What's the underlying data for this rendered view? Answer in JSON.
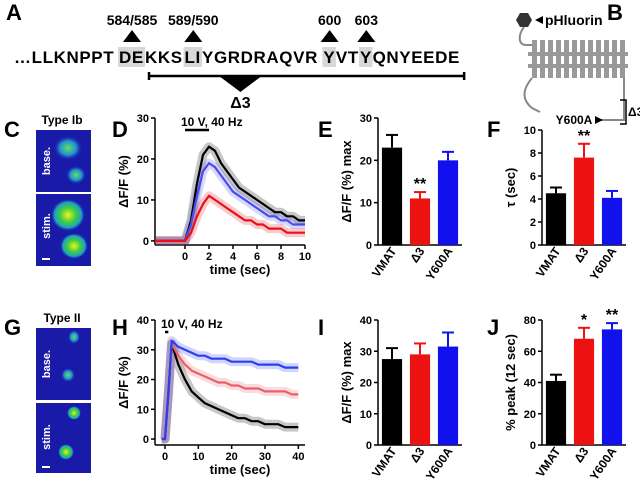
{
  "sequence_panel": {
    "panel": "A",
    "parts": [
      "…LLKNPPT",
      "DE",
      "KKS",
      "LI",
      "YGRDRAQVR",
      "Y",
      "VT",
      "Y",
      "QNYEEDE"
    ],
    "highlight": [
      false,
      true,
      false,
      true,
      false,
      true,
      false,
      true,
      false
    ],
    "site_labels": [
      "584/585",
      "589/590",
      "600",
      "603"
    ],
    "deletion_label": "Δ3"
  },
  "topology_panel": {
    "panel": "B",
    "tag": "pHluorin",
    "mutation": "Y600A",
    "deletion_label": "Δ3"
  },
  "image_panels": [
    {
      "panel": "C",
      "title": "Type Ib",
      "rows": [
        "base.",
        "stim."
      ]
    },
    {
      "panel": "G",
      "title": "Type II",
      "rows": [
        "base.",
        "stim."
      ]
    }
  ],
  "chart_data": [
    {
      "type": "line",
      "panel": "D",
      "title": "10 V, 40 Hz",
      "x_label": "time (sec)",
      "y_label": "ΔF/F (%)",
      "x": [
        -2.5,
        -2,
        -1.5,
        -1,
        -0.5,
        0,
        0.5,
        1,
        1.5,
        2,
        2.5,
        3,
        3.5,
        4,
        4.5,
        5,
        5.5,
        6,
        6.5,
        7,
        7.5,
        8,
        8.5,
        9,
        9.5,
        10
      ],
      "series": [
        {
          "color": "#000000",
          "values": [
            0,
            0,
            0,
            0,
            0,
            0,
            5,
            14,
            21,
            23,
            22,
            19,
            17,
            15,
            13,
            12,
            11,
            10,
            9,
            8,
            7,
            7,
            6,
            6,
            5,
            5
          ]
        },
        {
          "color": "#4a4cf0",
          "values": [
            0,
            0,
            0,
            0,
            0,
            0,
            4,
            11,
            17,
            19,
            18,
            16,
            14,
            12,
            11,
            10,
            9,
            8,
            7,
            6,
            6,
            5,
            5,
            4,
            4,
            4
          ]
        },
        {
          "color": "#e8101a",
          "values": [
            0,
            0,
            0,
            0,
            0,
            0,
            2,
            6,
            9,
            11,
            10,
            9,
            8,
            7,
            6,
            5,
            5,
            4,
            4,
            3,
            3,
            3,
            2,
            2,
            2,
            2
          ]
        }
      ],
      "stimulus": [
        0,
        2
      ],
      "xlim": [
        -2.5,
        10
      ],
      "xticks": [
        0,
        2,
        4,
        6,
        8,
        10
      ],
      "ylim": [
        -1,
        30
      ],
      "yticks": [
        0,
        10,
        20,
        30
      ]
    },
    {
      "type": "bar",
      "panel": "E",
      "y_label": "ΔF/F (%) max",
      "categories": [
        "VMAT",
        "Δ3",
        "Y600A"
      ],
      "colors": [
        "#000000",
        "#ee1111",
        "#1111ee"
      ],
      "values": [
        23,
        11,
        20
      ],
      "errors": [
        3,
        1.5,
        2
      ],
      "significance": [
        null,
        "**",
        null
      ],
      "ylim": [
        0,
        30
      ],
      "yticks": [
        0,
        10,
        20,
        30
      ]
    },
    {
      "type": "bar",
      "panel": "F",
      "y_label": "τ (sec)",
      "categories": [
        "VMAT",
        "Δ3",
        "Y600A"
      ],
      "colors": [
        "#000000",
        "#ee1111",
        "#1111ee"
      ],
      "values": [
        4.5,
        7.6,
        4.1
      ],
      "errors": [
        0.5,
        1.2,
        0.6
      ],
      "significance": [
        null,
        "**",
        null
      ],
      "ylim": [
        0,
        10
      ],
      "yticks": [
        0,
        2,
        4,
        6,
        8,
        10
      ]
    },
    {
      "type": "line",
      "panel": "H",
      "title": "10 V, 40 Hz",
      "x_label": "time (sec)",
      "y_label": "ΔF/F (%)",
      "x": [
        -1,
        0,
        1,
        2,
        4,
        6,
        8,
        10,
        12,
        14,
        16,
        18,
        20,
        22,
        24,
        26,
        28,
        30,
        32,
        34,
        36,
        38,
        40
      ],
      "series": [
        {
          "color": "#000000",
          "values": [
            0,
            0,
            15,
            32,
            25,
            20,
            16,
            14,
            12,
            11,
            10,
            9,
            8,
            7,
            7,
            6,
            6,
            5,
            5,
            5,
            4,
            4,
            4
          ]
        },
        {
          "color": "#e8606a",
          "values": [
            0,
            0,
            15,
            32,
            28,
            25,
            23,
            22,
            21,
            20,
            19,
            19,
            18,
            18,
            17,
            17,
            17,
            16,
            16,
            16,
            16,
            15,
            15
          ]
        },
        {
          "color": "#2a40f0",
          "values": [
            0,
            0,
            15,
            33,
            31,
            30,
            29,
            28,
            28,
            27,
            27,
            27,
            26,
            26,
            26,
            26,
            25,
            25,
            25,
            25,
            24,
            24,
            24
          ]
        }
      ],
      "stimulus": [
        0,
        1
      ],
      "xlim": [
        -3,
        42
      ],
      "xticks": [
        0,
        10,
        20,
        30,
        40
      ],
      "ylim": [
        -2,
        40
      ],
      "yticks": [
        0,
        10,
        20,
        30,
        40
      ]
    },
    {
      "type": "bar",
      "panel": "I",
      "y_label": "ΔF/F (%) max",
      "categories": [
        "VMAT",
        "Δ3",
        "Y600A"
      ],
      "colors": [
        "#000000",
        "#ee1111",
        "#1111ee"
      ],
      "values": [
        27.5,
        29,
        31.5
      ],
      "errors": [
        3.5,
        3.5,
        4.5
      ],
      "significance": [
        null,
        null,
        null
      ],
      "ylim": [
        0,
        40
      ],
      "yticks": [
        0,
        10,
        20,
        30,
        40
      ]
    },
    {
      "type": "bar",
      "panel": "J",
      "y_label": "% peak  (12 sec)",
      "categories": [
        "VMAT",
        "Δ3",
        "Y600A"
      ],
      "colors": [
        "#000000",
        "#ee1111",
        "#1111ee"
      ],
      "values": [
        41,
        68,
        74
      ],
      "errors": [
        4,
        7,
        4
      ],
      "significance": [
        null,
        "*",
        "**"
      ],
      "ylim": [
        0,
        80
      ],
      "yticks": [
        0,
        20,
        40,
        60,
        80
      ]
    }
  ]
}
